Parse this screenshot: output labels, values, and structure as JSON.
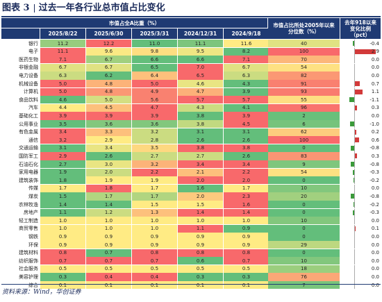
{
  "title": {
    "prefix": "图表 3",
    "text": "过去一年各行业总市值占比变化"
  },
  "header": {
    "main": "市值占全A比重（%）",
    "dates": [
      "2025/8/22",
      "2025/6/30",
      "2025/3/31",
      "2024/12/31",
      "2024/9/18"
    ],
    "rank": "市值占比所处2005年以来分位数（%）",
    "change": "去年918以来变化比例（pct）"
  },
  "colors": {
    "header_bg": "#1f3a73",
    "rank_high": "#e23a30",
    "rank_low": "#3a9a4a",
    "bar_neg": "#3a9a3a",
    "bar_pos": "#d23a3a"
  },
  "rows": [
    {
      "name": "银行",
      "v": [
        "11.2",
        "12.2",
        "11.0",
        "11.1",
        "11.6"
      ],
      "rank": "40",
      "chg": "-0.4",
      "chgnum": -0.4
    },
    {
      "name": "电子",
      "v": [
        "11.1",
        "9.6",
        "9.8",
        "9.5",
        "8.2"
      ],
      "rank": "100",
      "chg": "2.9",
      "chgnum": 2.9
    },
    {
      "name": "医药生物",
      "v": [
        "7.1",
        "6.7",
        "6.6",
        "6.6",
        "7.1"
      ],
      "rank": "70",
      "chg": "0.0",
      "chgnum": 0.0
    },
    {
      "name": "非银金融",
      "v": [
        "6.7",
        "6.7",
        "6.5",
        "7.0",
        "6.7"
      ],
      "rank": "54",
      "chg": "0.0",
      "chgnum": 0.0
    },
    {
      "name": "电力设备",
      "v": [
        "6.3",
        "6.2",
        "6.4",
        "6.5",
        "6.3"
      ],
      "rank": "82",
      "chg": "0.0",
      "chgnum": 0.0
    },
    {
      "name": "机械设备",
      "v": [
        "5.0",
        "4.8",
        "5.0",
        "4.6",
        "4.3"
      ],
      "rank": "91",
      "chg": "0.7",
      "chgnum": 0.7
    },
    {
      "name": "计算机",
      "v": [
        "5.0",
        "4.8",
        "4.9",
        "4.7",
        "3.9"
      ],
      "rank": "93",
      "chg": "1.1",
      "chgnum": 1.1
    },
    {
      "name": "食品饮料",
      "v": [
        "4.6",
        "5.0",
        "5.6",
        "5.7",
        "5.7"
      ],
      "rank": "55",
      "chg": "-1.1",
      "chgnum": -1.1
    },
    {
      "name": "汽车",
      "v": [
        "4.4",
        "4.5",
        "4.7",
        "4.3",
        "4.1"
      ],
      "rank": "96",
      "chg": "0.3",
      "chgnum": 0.3
    },
    {
      "name": "基础化工",
      "v": [
        "3.9",
        "3.9",
        "3.9",
        "3.8",
        "3.9"
      ],
      "rank": "2",
      "chg": "0.0",
      "chgnum": 0.0
    },
    {
      "name": "公用事业",
      "v": [
        "3.5",
        "3.6",
        "3.6",
        "3.8",
        "4.5"
      ],
      "rank": "6",
      "chg": "-1.0",
      "chgnum": -1.0
    },
    {
      "name": "有色金属",
      "v": [
        "3.4",
        "3.3",
        "3.2",
        "3.1",
        "3.1"
      ],
      "rank": "62",
      "chg": "0.2",
      "chgnum": 0.2
    },
    {
      "name": "通信",
      "v": [
        "3.2",
        "2.9",
        "2.8",
        "2.6",
        "2.6"
      ],
      "rank": "100",
      "chg": "0.6",
      "chgnum": 0.6
    },
    {
      "name": "交通运输",
      "v": [
        "3.1",
        "3.4",
        "3.5",
        "3.8",
        "3.8"
      ],
      "rank": "0",
      "chg": "-0.8",
      "chgnum": -0.8
    },
    {
      "name": "国防军工",
      "v": [
        "2.9",
        "2.6",
        "2.7",
        "2.7",
        "2.6"
      ],
      "rank": "83",
      "chg": "0.3",
      "chgnum": 0.3
    },
    {
      "name": "石油石化",
      "v": [
        "2.7",
        "3.0",
        "3.2",
        "3.4",
        "3.4"
      ],
      "rank": "9",
      "chg": "-0.8",
      "chgnum": -0.8
    },
    {
      "name": "家用电器",
      "v": [
        "1.9",
        "2.0",
        "2.2",
        "2.1",
        "2.2"
      ],
      "rank": "54",
      "chg": "-0.3",
      "chgnum": -0.3
    },
    {
      "name": "建筑装饰",
      "v": [
        "1.8",
        "1.9",
        "1.9",
        "2.0",
        "2.0"
      ],
      "rank": "0",
      "chg": "-0.2",
      "chgnum": -0.2
    },
    {
      "name": "传媒",
      "v": [
        "1.7",
        "1.8",
        "1.7",
        "1.6",
        "1.7"
      ],
      "rank": "10",
      "chg": "0.0",
      "chgnum": 0.0
    },
    {
      "name": "煤炭",
      "v": [
        "1.5",
        "1.7",
        "1.7",
        "2.0",
        "2.3"
      ],
      "rank": "20",
      "chg": "-0.8",
      "chgnum": -0.8
    },
    {
      "name": "农林牧渔",
      "v": [
        "1.4",
        "1.4",
        "1.5",
        "1.5",
        "1.6"
      ],
      "rank": "0",
      "chg": "-0.2",
      "chgnum": -0.2
    },
    {
      "name": "房地产",
      "v": [
        "1.1",
        "1.2",
        "1.3",
        "1.4",
        "1.4"
      ],
      "rank": "0",
      "chg": "-0.3",
      "chgnum": -0.3
    },
    {
      "name": "轻工制造",
      "v": [
        "1.0",
        "1.0",
        "1.0",
        "1.0",
        "1.0"
      ],
      "rank": "10",
      "chg": "0.0",
      "chgnum": 0.0
    },
    {
      "name": "商贸零售",
      "v": [
        "1.0",
        "1.0",
        "1.0",
        "1.1",
        "0.9"
      ],
      "rank": "0",
      "chg": "0.1",
      "chgnum": 0.1
    },
    {
      "name": "钢铁",
      "v": [
        "0.9",
        "0.9",
        "0.9",
        "0.9",
        "0.9"
      ],
      "rank": "0",
      "chg": "0.0",
      "chgnum": 0.0
    },
    {
      "name": "环保",
      "v": [
        "0.9",
        "0.9",
        "0.9",
        "0.9",
        "0.9"
      ],
      "rank": "29",
      "chg": "0.0",
      "chgnum": 0.0
    },
    {
      "name": "建筑材料",
      "v": [
        "0.8",
        "0.7",
        "0.8",
        "0.8",
        "0.8"
      ],
      "rank": "0",
      "chg": "0.0",
      "chgnum": 0.0
    },
    {
      "name": "纺织服饰",
      "v": [
        "0.7",
        "0.7",
        "0.7",
        "0.6",
        "0.7"
      ],
      "rank": "10",
      "chg": "0.0",
      "chgnum": 0.0
    },
    {
      "name": "社会服务",
      "v": [
        "0.5",
        "0.5",
        "0.5",
        "0.5",
        "0.5"
      ],
      "rank": "18",
      "chg": "0.0",
      "chgnum": 0.0
    },
    {
      "name": "美容护理",
      "v": [
        "0.3",
        "0.4",
        "0.4",
        "0.3",
        "0.3"
      ],
      "rank": "76",
      "chg": "0.0",
      "chgnum": 0.0
    },
    {
      "name": "综合",
      "v": [
        "0.1",
        "0.1",
        "0.1",
        "0.1",
        "0.1"
      ],
      "rank": "7",
      "chg": "0.0",
      "chgnum": 0.0
    }
  ],
  "source": "资料来源：Wind，华创证券"
}
